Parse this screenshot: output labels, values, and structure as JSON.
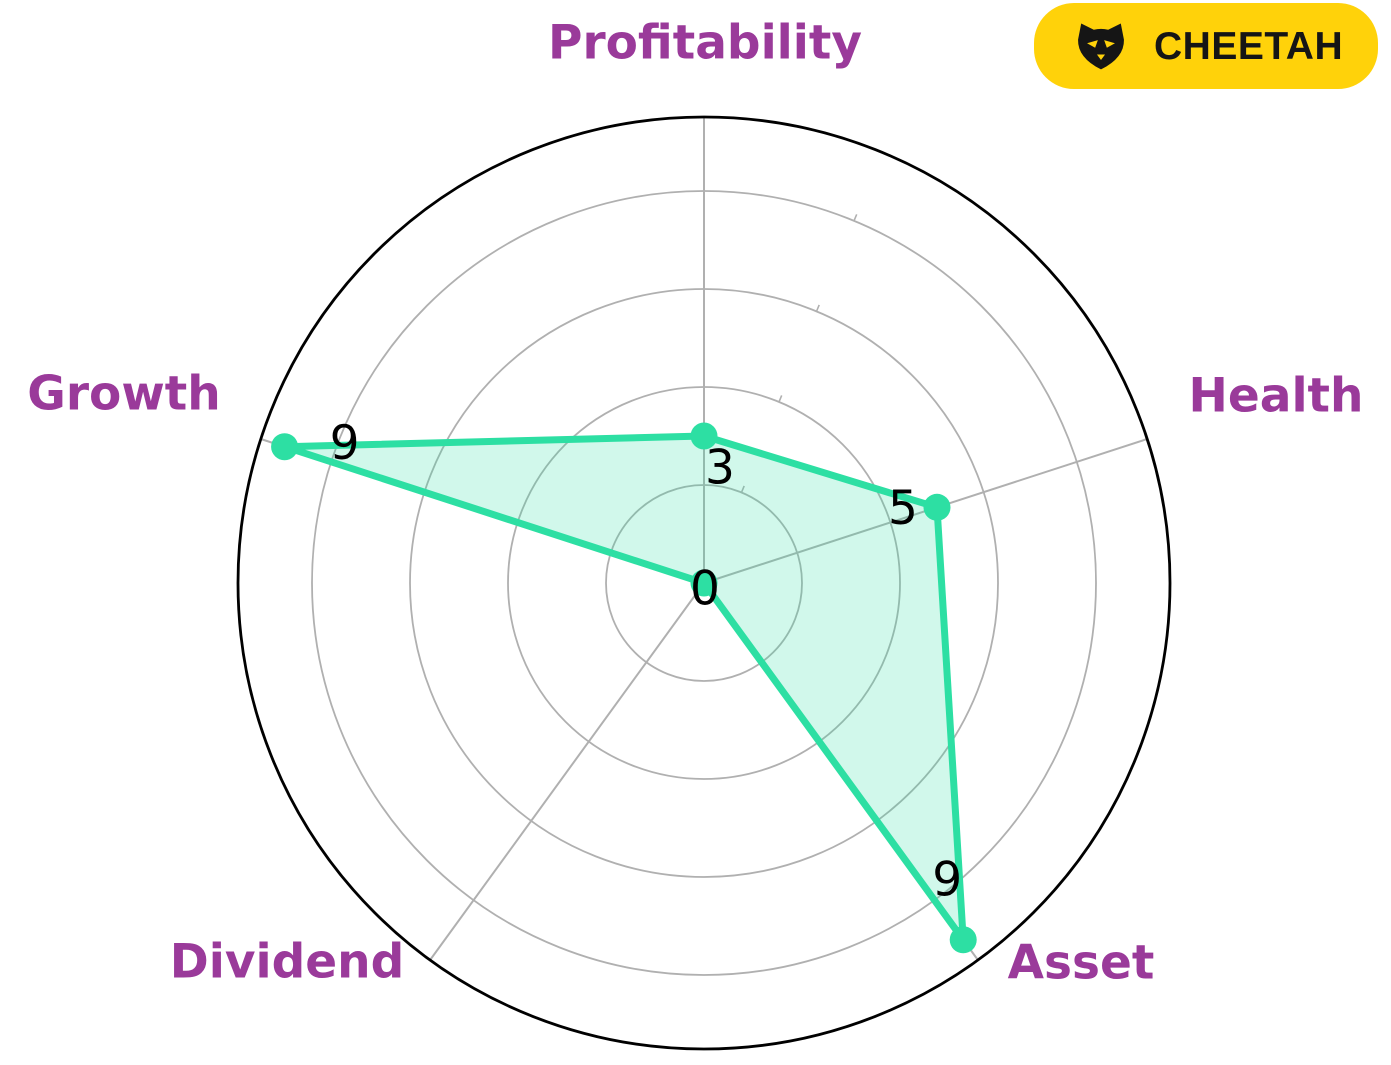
{
  "chart_data": {
    "type": "radar",
    "categories": [
      "Profitability",
      "Health",
      "Asset",
      "Dividend",
      "Growth"
    ],
    "values": [
      3,
      5,
      9,
      0,
      9
    ],
    "radial_ticks": [
      2,
      4,
      6,
      8
    ],
    "r_max": 9.5,
    "grid": true,
    "legend_position": "none",
    "style": {
      "line_color": "#2ddfa3",
      "fill_color": "rgba(45, 223, 163, 0.22)",
      "marker_color": "#2ddfa3",
      "grid_color": "#b0b0b0",
      "outer_ring_color": "#000000",
      "category_label_color": "#9a3a9a",
      "value_label_color": "#000000"
    }
  },
  "badge": {
    "label": "CHEETAH",
    "icon": "cat-face-icon",
    "bg_color": "#ffd20a",
    "text_color": "#151515"
  }
}
